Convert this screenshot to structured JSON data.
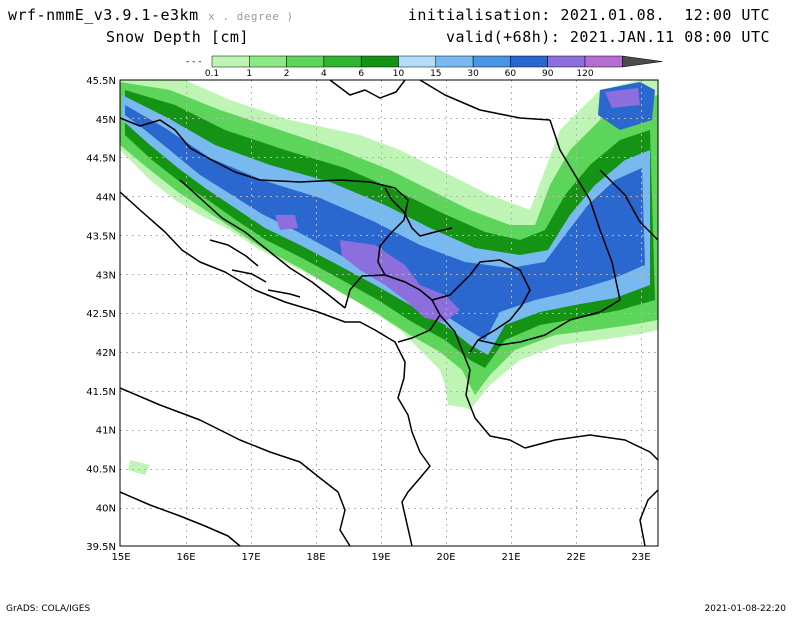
{
  "header": {
    "model": "wrf-nmmE_v3.9.1-e3km",
    "model_units": "x . degree )",
    "field": "Snow Depth [cm]",
    "init": "initialisation: 2021.01.08.  12:00 UTC",
    "valid": "valid(+68h): 2021.JAN.11 08:00 UTC"
  },
  "colorbar": {
    "below_marker": "- - -",
    "levels": [
      "0.1",
      "1",
      "2",
      "4",
      "6",
      "10",
      "15",
      "30",
      "60",
      "90",
      "120"
    ],
    "colors": [
      "#bff5b4",
      "#8de886",
      "#5cd55a",
      "#2fb52f",
      "#159315",
      "#b4dcf8",
      "#78baef",
      "#4896e3",
      "#2a67cf",
      "#8c6edc",
      "#b46ed2",
      "#4b4b4b"
    ]
  },
  "map": {
    "lat_labels": [
      "45.5N",
      "45N",
      "44.5N",
      "44N",
      "43.5N",
      "43N",
      "42.5N",
      "42N",
      "41.5N",
      "41N",
      "40.5N",
      "40N",
      "39.5N"
    ],
    "lon_labels": [
      "15E",
      "16E",
      "17E",
      "18E",
      "19E",
      "20E",
      "21E",
      "22E",
      "23E"
    ]
  },
  "footer": {
    "left": "GrADS: COLA/IGES",
    "right": "2021-01-08-22:20"
  }
}
